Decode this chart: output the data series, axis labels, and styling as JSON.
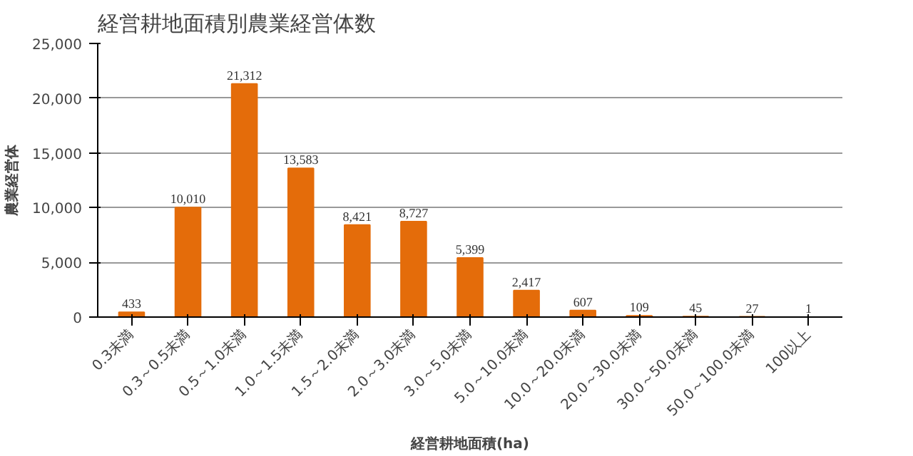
{
  "chart_data": {
    "type": "bar",
    "title": "経営耕地面積別農業経営体数",
    "xlabel": "経営耕地面積(ha)",
    "ylabel": "農業経営体",
    "categories": [
      "0.3未満",
      "0.3～0.5未満",
      "0.5～1.0未満",
      "1.0～1.5未満",
      "1.5～2.0未満",
      "2.0～3.0未満",
      "3.0～5.0未満",
      "5.0～10.0未満",
      "10.0～20.0未満",
      "20.0～30.0未満",
      "30.0～50.0未満",
      "50.0～100.0未満",
      "100以上"
    ],
    "values": [
      433,
      10010,
      21312,
      13583,
      8421,
      8727,
      5399,
      2417,
      607,
      109,
      45,
      27,
      1
    ],
    "value_labels": [
      "433",
      "10,010",
      "21,312",
      "13,583",
      "8,421",
      "8,727",
      "5,399",
      "2,417",
      "607",
      "109",
      "45",
      "27",
      "1"
    ],
    "color": "#e46c0a",
    "grid": "y",
    "ylim": [
      0,
      25000
    ],
    "yticks": [
      {
        "value": 0,
        "label": "0"
      },
      {
        "value": 5000,
        "label": "5,000"
      },
      {
        "value": 10000,
        "label": "10,000"
      },
      {
        "value": 15000,
        "label": "15,000"
      },
      {
        "value": 20000,
        "label": "20,000"
      },
      {
        "value": 25000,
        "label": "25,000"
      }
    ]
  }
}
